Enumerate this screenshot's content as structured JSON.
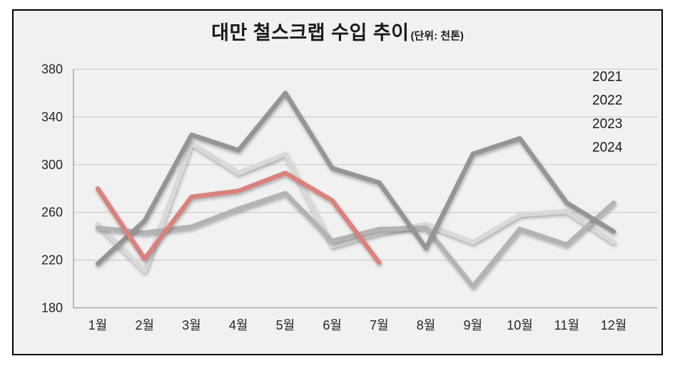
{
  "chart_data": {
    "type": "line",
    "title": "대만 철스크랩 수입 추이",
    "unit_label": "(단위: 천톤)",
    "categories": [
      "1월",
      "2월",
      "3월",
      "4월",
      "5월",
      "6월",
      "7월",
      "8월",
      "9월",
      "10월",
      "11월",
      "12월"
    ],
    "series": [
      {
        "name": "2021",
        "color": "#d9d9d9",
        "values": [
          250,
          211,
          318,
          293,
          309,
          232,
          243,
          250,
          235,
          258,
          261,
          235
        ]
      },
      {
        "name": "2022",
        "color": "#b3b3b3",
        "values": [
          247,
          243,
          248,
          263,
          276,
          236,
          246,
          247,
          198,
          246,
          233,
          268
        ]
      },
      {
        "name": "2023",
        "color": "#959595",
        "values": [
          217,
          253,
          325,
          312,
          360,
          297,
          285,
          230,
          309,
          322,
          268,
          244
        ]
      },
      {
        "name": "2024",
        "color": "#d9827e",
        "values": [
          280,
          221,
          273,
          278,
          293,
          270,
          218
        ]
      }
    ],
    "ylim": [
      180,
      380
    ],
    "yticks": [
      380,
      340,
      300,
      260,
      220,
      180
    ],
    "ytick_step": 40,
    "grid": true,
    "legend_position": "top-right",
    "legend_entries": [
      "2021",
      "2022",
      "2023",
      "2024"
    ]
  },
  "colors": {
    "frame_fill": "#f1f1f1",
    "frame_border": "#000000",
    "gridline": "#cdcdcd",
    "axis_line": "#a0a0a0",
    "tick_text": "#262626",
    "legend_text": "#1a1a1a"
  }
}
